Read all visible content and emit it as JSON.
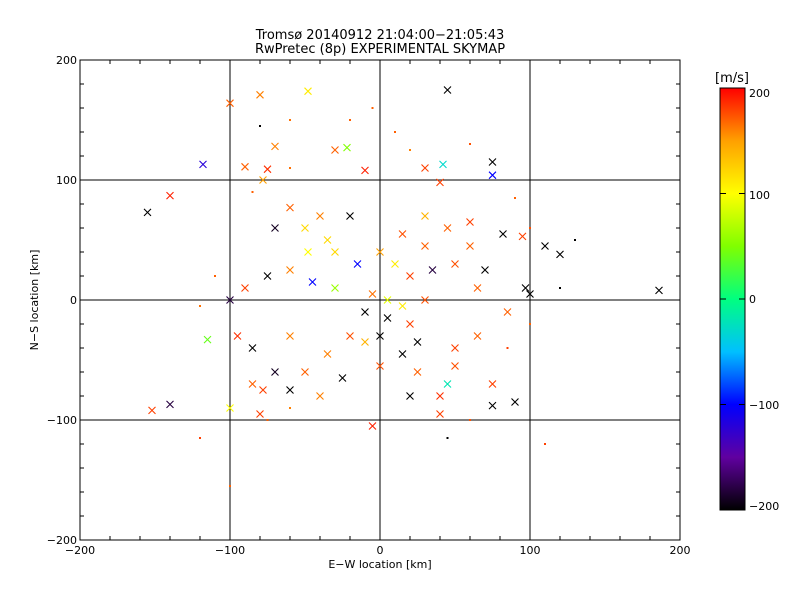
{
  "chart_data": {
    "type": "scatter",
    "title": "Tromsø 20140912 21:04:00−21:05:43",
    "subtitle": "RwPretec (8p) EXPERIMENTAL SKYMAP",
    "xlabel": "E−W location [km]",
    "ylabel": "N−S location [km]",
    "xlim": [
      -200,
      200
    ],
    "ylim": [
      -200,
      200
    ],
    "x_ticks": [
      "−200",
      "−100",
      "0",
      "100",
      "200"
    ],
    "y_ticks": [
      "−200",
      "−100",
      "0",
      "100",
      "200"
    ],
    "grid": true,
    "colorbar": {
      "label": "[m/s]",
      "range": [
        -200,
        200
      ],
      "ticks": [
        "200",
        "100",
        "0",
        "−100",
        "−200"
      ],
      "colors": [
        "#000000",
        "#6000a0",
        "#0000ff",
        "#00c0ff",
        "#00ff80",
        "#80ff00",
        "#ffff00",
        "#ffa000",
        "#ff0000"
      ]
    },
    "series": [
      {
        "marker": "x",
        "points": [
          [
            -155,
            73,
            -200
          ],
          [
            -140,
            87,
            190
          ],
          [
            -152,
            -92,
            180
          ],
          [
            -140,
            -87,
            -180
          ],
          [
            -118,
            113,
            -120
          ],
          [
            -115,
            -33,
            40
          ],
          [
            -100,
            164,
            170
          ],
          [
            -80,
            171,
            160
          ],
          [
            -78,
            100,
            150
          ],
          [
            -90,
            111,
            170
          ],
          [
            -75,
            109,
            185
          ],
          [
            -70,
            128,
            160
          ],
          [
            -48,
            174,
            110
          ],
          [
            -30,
            125,
            170
          ],
          [
            -22,
            127,
            50
          ],
          [
            -10,
            108,
            190
          ],
          [
            45,
            175,
            -200
          ],
          [
            30,
            110,
            180
          ],
          [
            40,
            98,
            180
          ],
          [
            75,
            115,
            -200
          ],
          [
            75,
            104,
            -100
          ],
          [
            42,
            113,
            -30
          ],
          [
            82,
            55,
            -200
          ],
          [
            95,
            53,
            180
          ],
          [
            110,
            45,
            -200
          ],
          [
            120,
            38,
            -200
          ],
          [
            97,
            10,
            -200
          ],
          [
            100,
            5,
            -200
          ],
          [
            186,
            8,
            -200
          ],
          [
            -60,
            77,
            170
          ],
          [
            -70,
            60,
            -190
          ],
          [
            -40,
            70,
            160
          ],
          [
            -20,
            70,
            -200
          ],
          [
            -48,
            40,
            100
          ],
          [
            -30,
            40,
            120
          ],
          [
            0,
            40,
            150
          ],
          [
            15,
            55,
            175
          ],
          [
            45,
            60,
            170
          ],
          [
            60,
            65,
            180
          ],
          [
            30,
            45,
            170
          ],
          [
            50,
            30,
            175
          ],
          [
            20,
            20,
            180
          ],
          [
            -60,
            25,
            160
          ],
          [
            -75,
            20,
            -200
          ],
          [
            -90,
            10,
            180
          ],
          [
            -100,
            0,
            -180
          ],
          [
            -45,
            15,
            -100
          ],
          [
            -30,
            10,
            60
          ],
          [
            -5,
            5,
            165
          ],
          [
            5,
            0,
            90
          ],
          [
            15,
            -5,
            110
          ],
          [
            30,
            0,
            175
          ],
          [
            -10,
            -10,
            -200
          ],
          [
            5,
            -15,
            -200
          ],
          [
            20,
            -20,
            180
          ],
          [
            -20,
            -30,
            175
          ],
          [
            0,
            -30,
            -200
          ],
          [
            25,
            -35,
            -200
          ],
          [
            50,
            -40,
            180
          ],
          [
            65,
            -30,
            170
          ],
          [
            85,
            -10,
            170
          ],
          [
            -60,
            -30,
            160
          ],
          [
            -85,
            -40,
            -200
          ],
          [
            -95,
            -30,
            185
          ],
          [
            -70,
            -60,
            -190
          ],
          [
            -50,
            -60,
            170
          ],
          [
            -25,
            -65,
            -200
          ],
          [
            0,
            -55,
            175
          ],
          [
            25,
            -60,
            170
          ],
          [
            50,
            -55,
            175
          ],
          [
            75,
            -70,
            180
          ],
          [
            -85,
            -70,
            170
          ],
          [
            -78,
            -75,
            180
          ],
          [
            -60,
            -75,
            -200
          ],
          [
            -40,
            -80,
            160
          ],
          [
            20,
            -80,
            -200
          ],
          [
            40,
            -80,
            185
          ],
          [
            75,
            -88,
            -200
          ],
          [
            90,
            -85,
            -200
          ],
          [
            -100,
            -90,
            100
          ],
          [
            -80,
            -95,
            180
          ],
          [
            40,
            -95,
            180
          ],
          [
            -5,
            -105,
            190
          ],
          [
            30,
            70,
            140
          ],
          [
            -50,
            60,
            120
          ],
          [
            60,
            45,
            170
          ],
          [
            70,
            25,
            -200
          ],
          [
            35,
            25,
            -180
          ],
          [
            -35,
            50,
            120
          ],
          [
            10,
            30,
            110
          ],
          [
            -15,
            30,
            -100
          ],
          [
            65,
            10,
            170
          ],
          [
            -10,
            -35,
            140
          ],
          [
            15,
            -45,
            -200
          ],
          [
            -35,
            -45,
            160
          ],
          [
            45,
            -70,
            -20
          ]
        ]
      },
      {
        "marker": "dot",
        "points": [
          [
            -120,
            -115,
            180
          ],
          [
            -100,
            -155,
            170
          ],
          [
            110,
            -120,
            180
          ],
          [
            130,
            50,
            -200
          ],
          [
            -5,
            160,
            170
          ],
          [
            20,
            125,
            160
          ],
          [
            -80,
            145,
            -200
          ],
          [
            -60,
            150,
            165
          ],
          [
            -85,
            90,
            170
          ],
          [
            -60,
            110,
            165
          ],
          [
            -20,
            150,
            170
          ],
          [
            10,
            140,
            170
          ],
          [
            60,
            130,
            175
          ],
          [
            -110,
            20,
            170
          ],
          [
            -120,
            -5,
            165
          ],
          [
            -75,
            -100,
            170
          ],
          [
            -60,
            -90,
            160
          ],
          [
            45,
            -115,
            -200
          ],
          [
            60,
            -100,
            175
          ],
          [
            85,
            -40,
            180
          ],
          [
            100,
            -20,
            170
          ],
          [
            120,
            10,
            -200
          ],
          [
            90,
            85,
            170
          ],
          [
            100,
            60,
            175
          ]
        ]
      }
    ]
  }
}
